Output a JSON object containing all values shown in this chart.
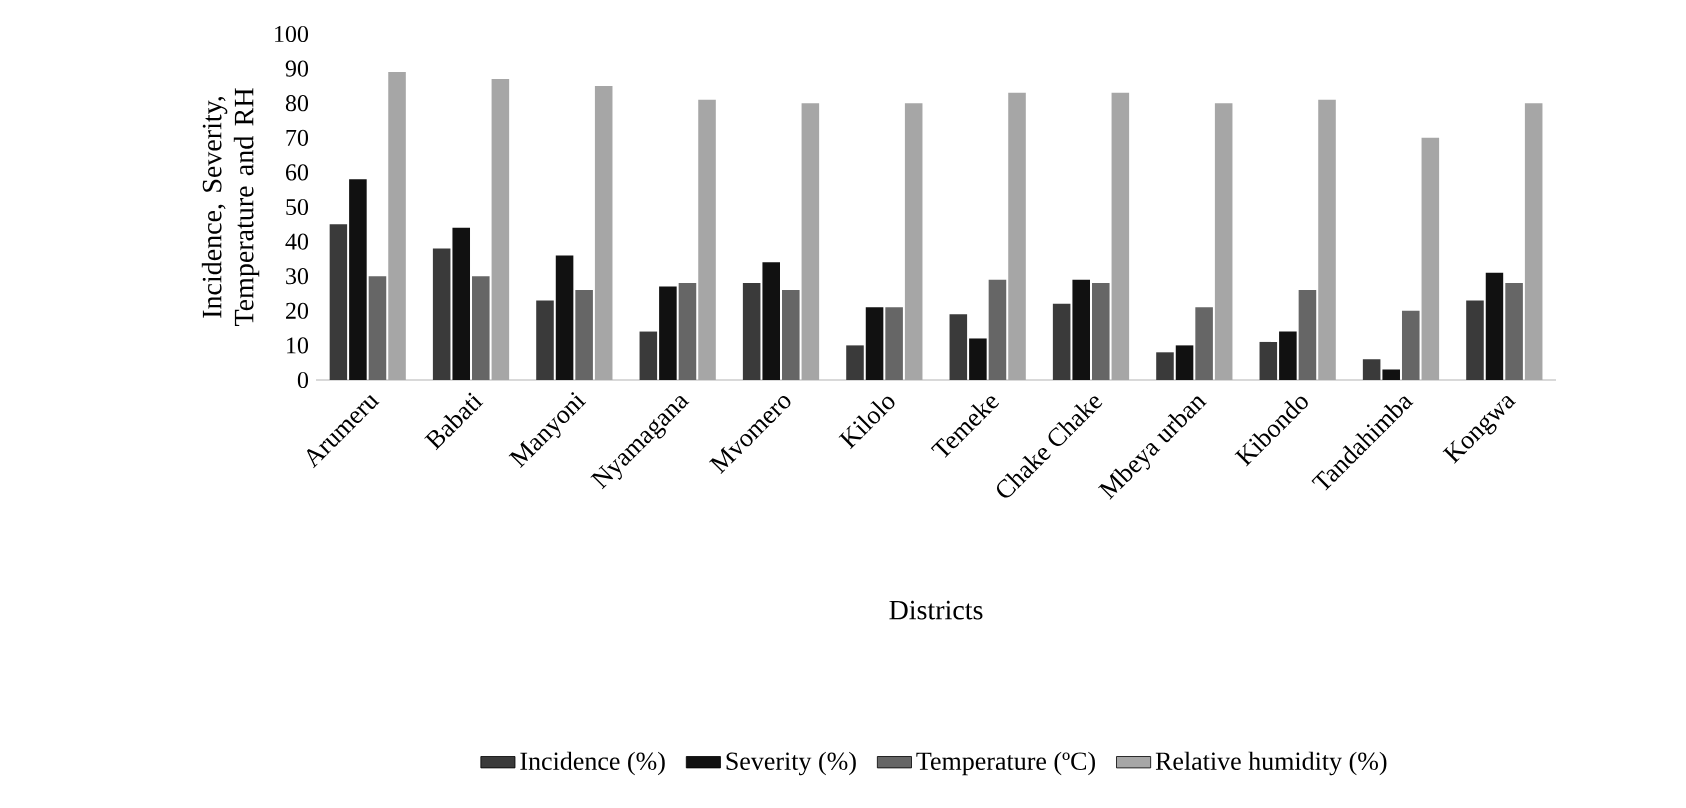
{
  "chart_data": {
    "type": "bar",
    "xlabel": "Districts",
    "ylabel": "Incidence, Severity, Temperature and RH",
    "categories": [
      "Arumeru",
      "Babati",
      "Manyoni",
      "Nyamagana",
      "Mvomero",
      "Kilolo",
      "Temeke",
      "Chake Chake",
      "Mbeya urban",
      "Kibondo",
      "Tandahimba",
      "Kongwa"
    ],
    "series": [
      {
        "name": "Incidence (%)",
        "color": "#3a3a3a",
        "values": [
          45,
          38,
          23,
          14,
          28,
          10,
          19,
          22,
          8,
          11,
          6,
          23
        ]
      },
      {
        "name": "Severity (%)",
        "color": "#111111",
        "values": [
          58,
          44,
          36,
          27,
          34,
          21,
          12,
          29,
          10,
          14,
          3,
          31
        ]
      },
      {
        "name": "Temperature (ºC)",
        "color": "#666666",
        "values": [
          30,
          30,
          26,
          28,
          26,
          21,
          29,
          28,
          21,
          26,
          20,
          28
        ]
      },
      {
        "name": "Relative humidity (%)",
        "color": "#a6a6a6",
        "values": [
          89,
          87,
          85,
          81,
          80,
          80,
          83,
          83,
          80,
          81,
          70,
          80
        ]
      }
    ],
    "ylim": [
      0,
      100
    ],
    "yticks": [
      0,
      10,
      20,
      30,
      40,
      50,
      60,
      70,
      80,
      90,
      100
    ],
    "grid": false,
    "legend": "bottom"
  }
}
